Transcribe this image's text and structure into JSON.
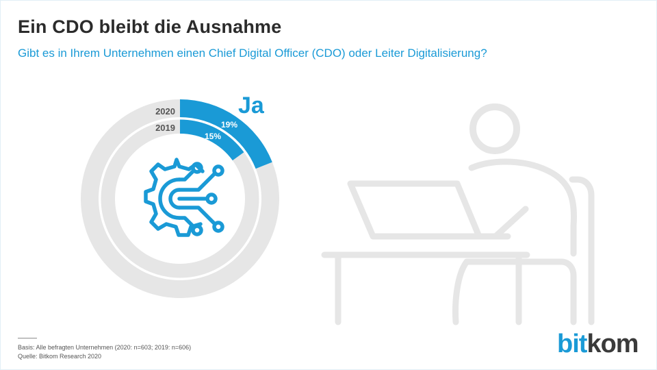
{
  "header": {
    "title": "Ein CDO bleibt die Ausnahme",
    "subtitle": "Gibt es in Ihrem Unternehmen einen Chief Digital Officer (CDO) oder Leiter Digitalisierung?"
  },
  "chart_data": {
    "type": "donut",
    "highlight_label": "Ja",
    "series": [
      {
        "name": "2020",
        "value": 19,
        "label": "19%"
      },
      {
        "name": "2019",
        "value": 15,
        "label": "15%"
      }
    ],
    "max": 100,
    "colors": {
      "highlight": "#1a9ad6",
      "rest": "#e6e6e6",
      "text_dark": "#555555"
    }
  },
  "footer": {
    "basis": "Basis: Alle befragten Unternehmen (2020: n=603; 2019: n=606)",
    "source": "Quelle: Bitkom Research 2020"
  },
  "logo": {
    "part1": "bit",
    "part2": "kom"
  },
  "icons": [
    "gear-circuit-icon",
    "person-at-laptop-illustration"
  ]
}
